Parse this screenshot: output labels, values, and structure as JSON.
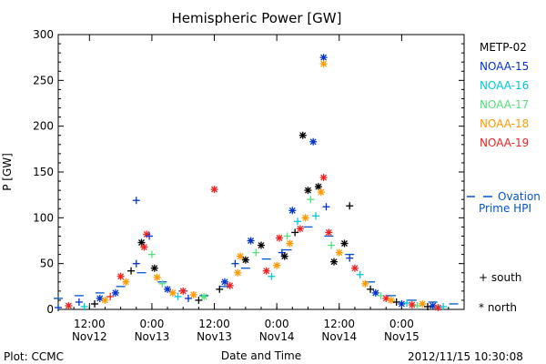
{
  "chart_data": {
    "type": "scatter",
    "title": "Hemispheric Power [GW]",
    "ylabel": "P [GW]",
    "xlabel": "Date and Time",
    "ylim": [
      0,
      300
    ],
    "yticks": [
      0,
      50,
      100,
      150,
      200,
      250,
      300
    ],
    "xlim": [
      "2012-11-12 06:00",
      "2012-11-15 12:00"
    ],
    "xticks": [
      {
        "t": "2012-11-12 12:00",
        "top": "12:00",
        "bottom": "Nov12"
      },
      {
        "t": "2012-11-13 00:00",
        "top": "0:00",
        "bottom": "Nov13"
      },
      {
        "t": "2012-11-13 12:00",
        "top": "12:00",
        "bottom": "Nov13"
      },
      {
        "t": "2012-11-14 00:00",
        "top": "0:00",
        "bottom": "Nov14"
      },
      {
        "t": "2012-11-14 12:00",
        "top": "12:00",
        "bottom": "Nov14"
      },
      {
        "t": "2012-11-15 00:00",
        "top": "0:00",
        "bottom": "Nov15"
      }
    ],
    "series": [
      {
        "name": "METP-02",
        "color": "#000000"
      },
      {
        "name": "NOAA-15",
        "color": "#0033cc"
      },
      {
        "name": "NOAA-16",
        "color": "#00c8d8"
      },
      {
        "name": "NOAA-17",
        "color": "#55e07a"
      },
      {
        "name": "NOAA-18",
        "color": "#ff9900"
      },
      {
        "name": "NOAA-19",
        "color": "#ee2222"
      }
    ],
    "ovation": {
      "label_line1": "Ovation",
      "label_line2": "Prime HPI",
      "color": "#0055cc"
    },
    "marker_key": [
      {
        "symbol": "+",
        "label": "south"
      },
      {
        "symbol": "*",
        "label": "north"
      }
    ],
    "highlighted_points": [
      {
        "series": "NOAA-15",
        "hemisphere": "north",
        "t": "2012-11-14 09:00",
        "value": 275
      },
      {
        "series": "NOAA-18",
        "hemisphere": "north",
        "t": "2012-11-14 09:00",
        "value": 268
      },
      {
        "series": "METP-02",
        "hemisphere": "north",
        "t": "2012-11-14 05:00",
        "value": 190
      },
      {
        "series": "NOAA-15",
        "hemisphere": "north",
        "t": "2012-11-14 07:00",
        "value": 183
      },
      {
        "series": "NOAA-19",
        "hemisphere": "north",
        "t": "2012-11-14 09:00",
        "value": 144
      },
      {
        "series": "NOAA-19",
        "hemisphere": "north",
        "t": "2012-11-13 12:00",
        "value": 131
      },
      {
        "series": "NOAA-15",
        "hemisphere": "south",
        "t": "2012-11-12 21:00",
        "value": 119
      },
      {
        "series": "METP-02",
        "hemisphere": "south",
        "t": "2012-11-14 14:00",
        "value": 113
      }
    ],
    "cloud_points": [
      [
        "2012-11-12 06:00",
        2,
        "NOAA-15",
        "s"
      ],
      [
        "2012-11-12 08:00",
        4,
        "NOAA-19",
        "n"
      ],
      [
        "2012-11-12 10:00",
        8,
        "NOAA-15",
        "s"
      ],
      [
        "2012-11-12 11:00",
        3,
        "NOAA-16",
        "s"
      ],
      [
        "2012-11-12 13:00",
        6,
        "METP-02",
        "s"
      ],
      [
        "2012-11-12 14:00",
        12,
        "NOAA-15",
        "n"
      ],
      [
        "2012-11-12 15:00",
        10,
        "NOAA-18",
        "n"
      ],
      [
        "2012-11-12 16:00",
        14,
        "NOAA-19",
        "s"
      ],
      [
        "2012-11-12 17:00",
        18,
        "NOAA-15",
        "n"
      ],
      [
        "2012-11-12 18:00",
        36,
        "NOAA-19",
        "n"
      ],
      [
        "2012-11-12 19:00",
        30,
        "NOAA-18",
        "n"
      ],
      [
        "2012-11-12 20:00",
        42,
        "METP-02",
        "s"
      ],
      [
        "2012-11-12 21:00",
        50,
        "NOAA-15",
        "s"
      ],
      [
        "2012-11-12 22:00",
        73,
        "METP-02",
        "n"
      ],
      [
        "2012-11-12 22:30",
        68,
        "NOAA-19",
        "n"
      ],
      [
        "2012-11-12 23:00",
        82,
        "NOAA-19",
        "n"
      ],
      [
        "2012-11-12 23:30",
        80,
        "NOAA-15",
        "s"
      ],
      [
        "2012-11-13 00:00",
        60,
        "NOAA-17",
        "s"
      ],
      [
        "2012-11-13 00:30",
        45,
        "METP-02",
        "n"
      ],
      [
        "2012-11-13 01:00",
        35,
        "NOAA-18",
        "n"
      ],
      [
        "2012-11-13 02:00",
        28,
        "NOAA-17",
        "s"
      ],
      [
        "2012-11-13 03:00",
        22,
        "NOAA-15",
        "n"
      ],
      [
        "2012-11-13 04:00",
        18,
        "NOAA-18",
        "n"
      ],
      [
        "2012-11-13 05:00",
        14,
        "NOAA-16",
        "s"
      ],
      [
        "2012-11-13 06:00",
        20,
        "NOAA-19",
        "n"
      ],
      [
        "2012-11-13 07:00",
        12,
        "NOAA-15",
        "s"
      ],
      [
        "2012-11-13 08:00",
        16,
        "NOAA-18",
        "n"
      ],
      [
        "2012-11-13 09:00",
        10,
        "METP-02",
        "s"
      ],
      [
        "2012-11-13 10:00",
        14,
        "NOAA-17",
        "n"
      ],
      [
        "2012-11-13 13:00",
        22,
        "METP-02",
        "s"
      ],
      [
        "2012-11-13 14:00",
        30,
        "NOAA-15",
        "n"
      ],
      [
        "2012-11-13 15:00",
        26,
        "NOAA-19",
        "n"
      ],
      [
        "2012-11-13 16:00",
        50,
        "NOAA-15",
        "s"
      ],
      [
        "2012-11-13 16:30",
        40,
        "NOAA-18",
        "n"
      ],
      [
        "2012-11-13 17:00",
        58,
        "NOAA-18",
        "n"
      ],
      [
        "2012-11-13 18:00",
        54,
        "METP-02",
        "n"
      ],
      [
        "2012-11-13 19:00",
        75,
        "NOAA-15",
        "n"
      ],
      [
        "2012-11-13 20:00",
        62,
        "NOAA-17",
        "s"
      ],
      [
        "2012-11-13 21:00",
        70,
        "METP-02",
        "n"
      ],
      [
        "2012-11-13 22:00",
        42,
        "NOAA-19",
        "n"
      ],
      [
        "2012-11-13 23:00",
        36,
        "NOAA-16",
        "s"
      ],
      [
        "2012-11-14 00:00",
        48,
        "NOAA-18",
        "n"
      ],
      [
        "2012-11-14 00:30",
        78,
        "NOAA-19",
        "n"
      ],
      [
        "2012-11-14 01:00",
        62,
        "NOAA-15",
        "s"
      ],
      [
        "2012-11-14 01:30",
        58,
        "METP-02",
        "n"
      ],
      [
        "2012-11-14 02:00",
        80,
        "NOAA-17",
        "s"
      ],
      [
        "2012-11-14 02:30",
        72,
        "NOAA-18",
        "n"
      ],
      [
        "2012-11-14 03:00",
        108,
        "NOAA-15",
        "n"
      ],
      [
        "2012-11-14 03:30",
        84,
        "METP-02",
        "s"
      ],
      [
        "2012-11-14 04:00",
        96,
        "NOAA-16",
        "s"
      ],
      [
        "2012-11-14 04:30",
        88,
        "NOAA-19",
        "n"
      ],
      [
        "2012-11-14 05:30",
        100,
        "NOAA-18",
        "n"
      ],
      [
        "2012-11-14 06:00",
        130,
        "METP-02",
        "n"
      ],
      [
        "2012-11-14 06:30",
        120,
        "NOAA-17",
        "s"
      ],
      [
        "2012-11-14 07:30",
        102,
        "NOAA-16",
        "s"
      ],
      [
        "2012-11-14 08:00",
        134,
        "METP-02",
        "n"
      ],
      [
        "2012-11-14 08:30",
        128,
        "NOAA-18",
        "n"
      ],
      [
        "2012-11-14 09:30",
        112,
        "NOAA-15",
        "s"
      ],
      [
        "2012-11-14 10:00",
        84,
        "NOAA-19",
        "n"
      ],
      [
        "2012-11-14 10:30",
        70,
        "NOAA-17",
        "s"
      ],
      [
        "2012-11-14 11:00",
        52,
        "METP-02",
        "n"
      ],
      [
        "2012-11-14 12:00",
        62,
        "NOAA-18",
        "n"
      ],
      [
        "2012-11-14 13:00",
        72,
        "METP-02",
        "n"
      ],
      [
        "2012-11-14 14:00",
        56,
        "NOAA-15",
        "s"
      ],
      [
        "2012-11-14 15:00",
        45,
        "NOAA-19",
        "n"
      ],
      [
        "2012-11-14 16:00",
        38,
        "NOAA-16",
        "s"
      ],
      [
        "2012-11-14 17:00",
        28,
        "NOAA-18",
        "n"
      ],
      [
        "2012-11-14 18:00",
        22,
        "METP-02",
        "s"
      ],
      [
        "2012-11-14 19:00",
        18,
        "NOAA-15",
        "n"
      ],
      [
        "2012-11-14 20:00",
        15,
        "NOAA-17",
        "s"
      ],
      [
        "2012-11-14 21:00",
        12,
        "NOAA-19",
        "n"
      ],
      [
        "2012-11-14 22:00",
        10,
        "NOAA-18",
        "n"
      ],
      [
        "2012-11-14 23:00",
        8,
        "METP-02",
        "s"
      ],
      [
        "2012-11-15 00:00",
        6,
        "NOAA-15",
        "n"
      ],
      [
        "2012-11-15 01:00",
        7,
        "NOAA-16",
        "s"
      ],
      [
        "2012-11-15 02:00",
        5,
        "NOAA-19",
        "n"
      ],
      [
        "2012-11-15 03:00",
        4,
        "NOAA-17",
        "s"
      ],
      [
        "2012-11-15 04:00",
        6,
        "NOAA-18",
        "n"
      ],
      [
        "2012-11-15 05:00",
        3,
        "METP-02",
        "s"
      ],
      [
        "2012-11-15 06:00",
        4,
        "NOAA-15",
        "n"
      ],
      [
        "2012-11-15 07:00",
        2,
        "NOAA-19",
        "n"
      ],
      [
        "2012-11-15 08:00",
        3,
        "NOAA-16",
        "s"
      ]
    ],
    "ovation_values": [
      [
        "2012-11-12 06:00",
        12
      ],
      [
        "2012-11-12 10:00",
        15
      ],
      [
        "2012-11-12 14:00",
        18
      ],
      [
        "2012-11-12 18:00",
        25
      ],
      [
        "2012-11-12 22:00",
        40
      ],
      [
        "2012-11-13 02:00",
        30
      ],
      [
        "2012-11-13 06:00",
        20
      ],
      [
        "2012-11-13 10:00",
        15
      ],
      [
        "2012-11-13 14:00",
        25
      ],
      [
        "2012-11-13 18:00",
        45
      ],
      [
        "2012-11-13 22:00",
        55
      ],
      [
        "2012-11-14 02:00",
        65
      ],
      [
        "2012-11-14 06:00",
        90
      ],
      [
        "2012-11-14 10:00",
        80
      ],
      [
        "2012-11-14 14:00",
        60
      ],
      [
        "2012-11-14 18:00",
        30
      ],
      [
        "2012-11-14 22:00",
        15
      ],
      [
        "2012-11-15 02:00",
        10
      ],
      [
        "2012-11-15 06:00",
        8
      ],
      [
        "2012-11-15 10:00",
        6
      ]
    ]
  },
  "footer": {
    "left": "Plot: CCMC",
    "right": "2012/11/15 10:30:08"
  }
}
